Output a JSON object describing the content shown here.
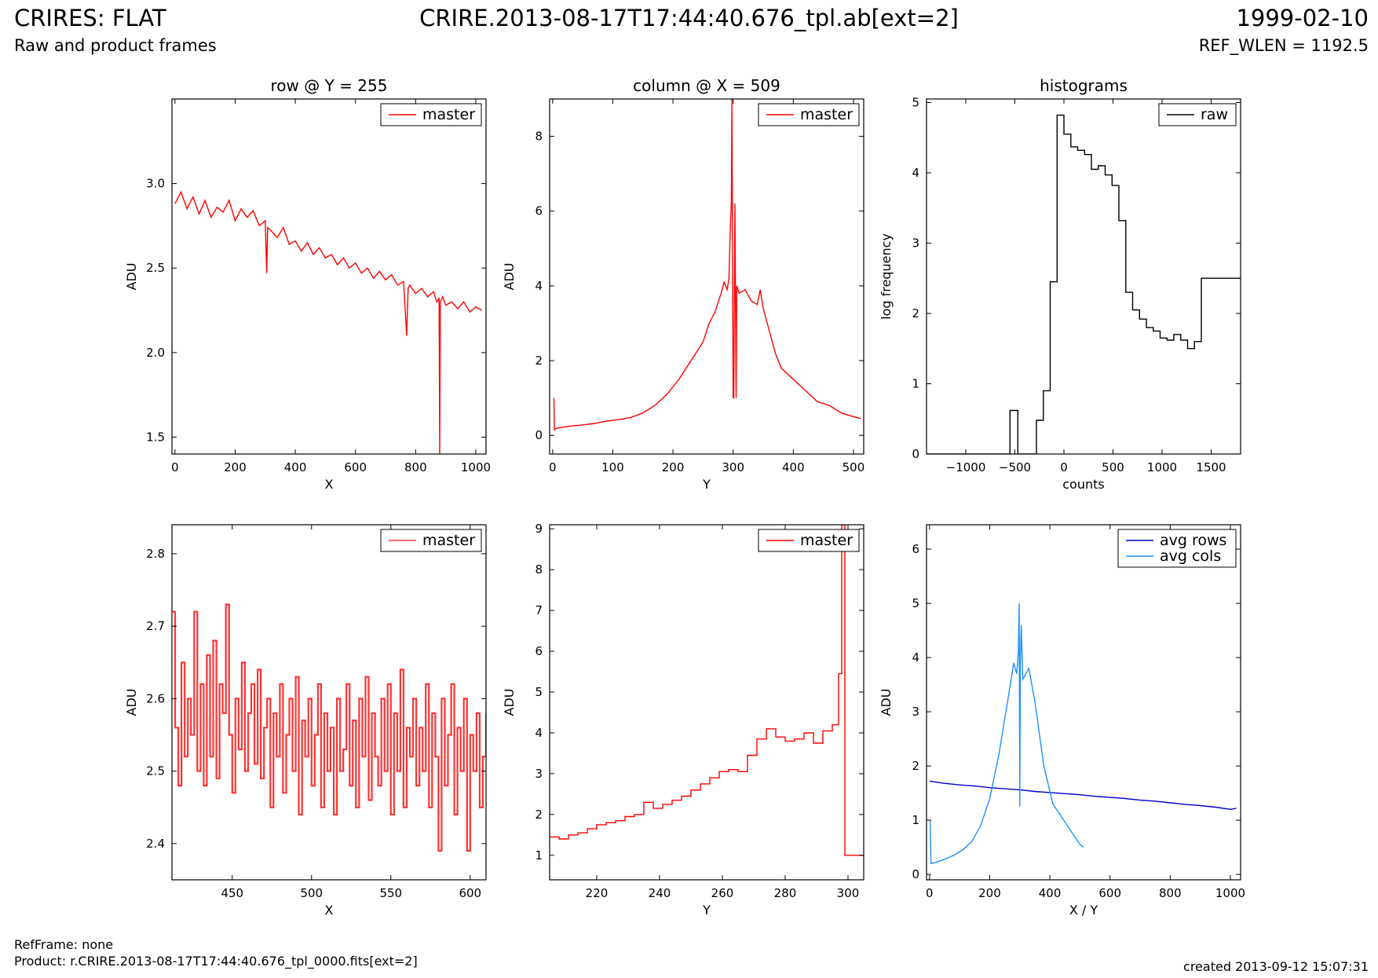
{
  "header": {
    "title_left": "CRIRES: FLAT",
    "subtitle_left": "Raw and product frames",
    "title_center": "CRIRE.2013-08-17T17:44:40.676_tpl.ab[ext=2]",
    "title_right": "1999-02-10",
    "subtitle_right": "REF_WLEN = 1192.5"
  },
  "footer": {
    "refframe": "RefFrame: none",
    "product": "Product: r.CRIRE.2013-08-17T17:44:40.676_tpl_0000.fits[ext=2]",
    "created": "created 2013-09-12 15:07:31"
  },
  "colors": {
    "red": "#ff0000",
    "darkblue": "#0000cc",
    "lightblue": "#1e90ff",
    "black": "#000000"
  },
  "chart_data": [
    {
      "id": "row",
      "type": "line",
      "title": "row @ Y = 255",
      "xlabel": "X",
      "ylabel": "ADU",
      "xlim": [
        -10,
        1034
      ],
      "ylim": [
        1.4,
        3.5
      ],
      "xticks": [
        0,
        200,
        400,
        600,
        800,
        1000
      ],
      "yticks": [
        1.5,
        2.0,
        2.5,
        3.0
      ],
      "ytick_labels": [
        "1.5",
        "2.0",
        "2.5",
        "3.0"
      ],
      "legend": "top-right",
      "series": [
        {
          "name": "master",
          "color": "#ff0000",
          "x": [
            0,
            20,
            40,
            60,
            80,
            100,
            120,
            140,
            160,
            180,
            200,
            220,
            240,
            260,
            280,
            300,
            305,
            308,
            320,
            340,
            360,
            380,
            400,
            420,
            440,
            460,
            480,
            500,
            520,
            540,
            560,
            580,
            600,
            620,
            640,
            660,
            680,
            700,
            720,
            740,
            760,
            770,
            775,
            780,
            800,
            820,
            840,
            860,
            870,
            878,
            880,
            882,
            890,
            900,
            920,
            940,
            960,
            980,
            1000,
            1020
          ],
          "y": [
            2.88,
            2.95,
            2.85,
            2.92,
            2.82,
            2.9,
            2.8,
            2.86,
            2.83,
            2.9,
            2.78,
            2.85,
            2.8,
            2.84,
            2.75,
            2.78,
            2.47,
            2.74,
            2.72,
            2.68,
            2.74,
            2.64,
            2.66,
            2.6,
            2.65,
            2.58,
            2.62,
            2.56,
            2.58,
            2.52,
            2.56,
            2.5,
            2.53,
            2.47,
            2.5,
            2.44,
            2.48,
            2.43,
            2.46,
            2.4,
            2.42,
            2.1,
            2.38,
            2.4,
            2.35,
            2.38,
            2.33,
            2.36,
            2.3,
            2.32,
            1.4,
            2.3,
            2.33,
            2.28,
            2.3,
            2.26,
            2.3,
            2.24,
            2.27,
            2.25
          ]
        }
      ]
    },
    {
      "id": "column",
      "type": "line",
      "title": "column @ X = 509",
      "xlabel": "Y",
      "ylabel": "ADU",
      "xlim": [
        -5,
        517
      ],
      "ylim": [
        -0.5,
        9
      ],
      "xticks": [
        0,
        100,
        200,
        300,
        400,
        500
      ],
      "yticks": [
        0,
        2,
        4,
        6,
        8
      ],
      "ytick_labels": [
        "0",
        "2",
        "4",
        "6",
        "8"
      ],
      "legend": "top-right",
      "series": [
        {
          "name": "master",
          "color": "#ff0000",
          "x": [
            2,
            3,
            5,
            10,
            30,
            50,
            70,
            90,
            110,
            130,
            150,
            170,
            190,
            210,
            230,
            250,
            260,
            270,
            280,
            285,
            290,
            293,
            295,
            297,
            298,
            300,
            301,
            303,
            305,
            306,
            310,
            320,
            330,
            340,
            345,
            350,
            360,
            370,
            380,
            400,
            420,
            440,
            460,
            480,
            500,
            512
          ],
          "y": [
            1.0,
            0.15,
            0.18,
            0.2,
            0.25,
            0.28,
            0.32,
            0.38,
            0.42,
            0.48,
            0.6,
            0.8,
            1.1,
            1.5,
            2.0,
            2.5,
            3.0,
            3.3,
            3.8,
            4.1,
            3.9,
            4.2,
            5.4,
            6.2,
            9.0,
            1.0,
            1.0,
            6.2,
            1.0,
            4.0,
            3.8,
            3.9,
            3.6,
            3.5,
            3.9,
            3.4,
            2.8,
            2.2,
            1.8,
            1.5,
            1.2,
            0.9,
            0.8,
            0.6,
            0.5,
            0.45
          ]
        }
      ]
    },
    {
      "id": "histograms",
      "type": "line",
      "title": "histograms",
      "xlabel": "counts",
      "ylabel": "log frequency",
      "xlim": [
        -1400,
        1800
      ],
      "ylim": [
        0,
        5.05
      ],
      "xticks": [
        -1000,
        -500,
        0,
        500,
        1000,
        1500
      ],
      "yticks": [
        0,
        1,
        2,
        3,
        4,
        5
      ],
      "ytick_labels": [
        "0",
        "1",
        "2",
        "3",
        "4",
        "5"
      ],
      "legend": "top-right",
      "series": [
        {
          "name": "raw",
          "color": "#000000",
          "step": true,
          "x": [
            -1400,
            -550,
            -550,
            -470,
            -470,
            -280,
            -280,
            -210,
            -210,
            -140,
            -140,
            -70,
            -70,
            0,
            0,
            70,
            70,
            140,
            140,
            210,
            210,
            280,
            280,
            350,
            350,
            420,
            420,
            490,
            490,
            560,
            560,
            630,
            630,
            700,
            700,
            770,
            770,
            840,
            840,
            910,
            910,
            980,
            980,
            1050,
            1050,
            1120,
            1120,
            1190,
            1190,
            1260,
            1260,
            1330,
            1330,
            1400,
            1400,
            1470,
            1470,
            1540,
            1540,
            1610,
            1610,
            1680,
            1680,
            1730,
            1730,
            1800
          ],
          "y": [
            0,
            0,
            0.62,
            0.62,
            0,
            0,
            0.48,
            0.48,
            0.9,
            0.9,
            2.45,
            2.45,
            4.82,
            4.82,
            4.55,
            4.55,
            4.37,
            4.37,
            4.32,
            4.32,
            4.26,
            4.26,
            4.05,
            4.05,
            4.1,
            4.1,
            3.97,
            3.97,
            3.82,
            3.82,
            3.32,
            3.32,
            2.3,
            2.3,
            2.05,
            2.05,
            1.92,
            1.92,
            1.8,
            1.8,
            1.75,
            1.75,
            1.65,
            1.65,
            1.62,
            1.62,
            1.7,
            1.7,
            1.62,
            1.62,
            1.5,
            1.5,
            1.6,
            1.6,
            2.5,
            2.5,
            2.5,
            2.5,
            2.5,
            2.5,
            2.5,
            2.5,
            2.5,
            2.5,
            2.5,
            2.5
          ]
        }
      ]
    },
    {
      "id": "row_zoom",
      "type": "line",
      "xlabel": "X",
      "ylabel": "ADU",
      "xlim": [
        412,
        610
      ],
      "ylim": [
        2.35,
        2.84
      ],
      "xticks": [
        450,
        500,
        550,
        600
      ],
      "yticks": [
        2.4,
        2.5,
        2.6,
        2.7,
        2.8
      ],
      "ytick_labels": [
        "2.4",
        "2.5",
        "2.6",
        "2.7",
        "2.8"
      ],
      "legend": "top-right",
      "series": [
        {
          "name": "master",
          "color": "#ff3333",
          "step": true,
          "x": [
            412,
            414,
            416,
            418,
            420,
            422,
            424,
            426,
            428,
            430,
            432,
            434,
            436,
            438,
            440,
            442,
            444,
            446,
            448,
            450,
            452,
            454,
            456,
            458,
            460,
            462,
            464,
            466,
            468,
            470,
            472,
            474,
            476,
            478,
            480,
            482,
            484,
            486,
            488,
            490,
            492,
            494,
            496,
            498,
            500,
            502,
            504,
            506,
            508,
            510,
            512,
            514,
            516,
            518,
            520,
            522,
            524,
            526,
            528,
            530,
            532,
            534,
            536,
            538,
            540,
            542,
            544,
            546,
            548,
            550,
            552,
            554,
            556,
            558,
            560,
            562,
            564,
            566,
            568,
            570,
            572,
            574,
            576,
            578,
            580,
            582,
            584,
            586,
            588,
            590,
            592,
            594,
            596,
            598,
            600,
            602,
            604,
            606,
            608,
            610
          ],
          "y": [
            2.72,
            2.56,
            2.48,
            2.65,
            2.52,
            2.6,
            2.55,
            2.72,
            2.5,
            2.62,
            2.48,
            2.66,
            2.52,
            2.68,
            2.49,
            2.62,
            2.58,
            2.73,
            2.55,
            2.47,
            2.6,
            2.53,
            2.65,
            2.5,
            2.58,
            2.62,
            2.51,
            2.64,
            2.49,
            2.56,
            2.6,
            2.45,
            2.58,
            2.52,
            2.62,
            2.47,
            2.55,
            2.6,
            2.5,
            2.63,
            2.44,
            2.57,
            2.52,
            2.6,
            2.48,
            2.55,
            2.62,
            2.45,
            2.58,
            2.5,
            2.56,
            2.44,
            2.6,
            2.5,
            2.53,
            2.62,
            2.48,
            2.57,
            2.45,
            2.6,
            2.52,
            2.63,
            2.46,
            2.58,
            2.52,
            2.48,
            2.6,
            2.5,
            2.62,
            2.44,
            2.58,
            2.5,
            2.64,
            2.45,
            2.56,
            2.52,
            2.6,
            2.48,
            2.56,
            2.5,
            2.62,
            2.45,
            2.58,
            2.52,
            2.39,
            2.6,
            2.48,
            2.55,
            2.62,
            2.44,
            2.56,
            2.5,
            2.6,
            2.39,
            2.55,
            2.5,
            2.58,
            2.45,
            2.52,
            2.58
          ]
        }
      ]
    },
    {
      "id": "column_zoom",
      "type": "line",
      "xlabel": "Y",
      "ylabel": "ADU",
      "xlim": [
        205,
        305
      ],
      "ylim": [
        0.4,
        9.1
      ],
      "xticks": [
        220,
        240,
        260,
        280,
        300
      ],
      "yticks": [
        1,
        2,
        3,
        4,
        5,
        6,
        7,
        8,
        9
      ],
      "ytick_labels": [
        "1",
        "2",
        "3",
        "4",
        "5",
        "6",
        "7",
        "8",
        "9"
      ],
      "legend": "top-right",
      "series": [
        {
          "name": "master",
          "color": "#ff0000",
          "step": true,
          "x": [
            205,
            208,
            211,
            214,
            217,
            220,
            223,
            226,
            229,
            232,
            235,
            238,
            241,
            244,
            247,
            250,
            253,
            256,
            259,
            262,
            265,
            268,
            271,
            274,
            277,
            280,
            283,
            286,
            289,
            292,
            295,
            297,
            298,
            299,
            300,
            301,
            305
          ],
          "y": [
            1.45,
            1.4,
            1.5,
            1.55,
            1.65,
            1.75,
            1.8,
            1.85,
            1.95,
            2.0,
            2.3,
            2.15,
            2.25,
            2.35,
            2.45,
            2.6,
            2.75,
            2.9,
            3.05,
            3.1,
            3.05,
            3.45,
            3.85,
            4.1,
            3.9,
            3.8,
            3.85,
            4.0,
            3.75,
            4.05,
            4.2,
            5.45,
            9.1,
            1.0,
            1.0,
            1.0,
            1.0
          ]
        }
      ]
    },
    {
      "id": "averages",
      "type": "line",
      "xlabel": "X / Y",
      "ylabel": "ADU",
      "xlim": [
        -10,
        1034
      ],
      "ylim": [
        -0.1,
        6.45
      ],
      "xticks": [
        0,
        200,
        400,
        600,
        800,
        1000
      ],
      "yticks": [
        0,
        1,
        2,
        3,
        4,
        5,
        6
      ],
      "ytick_labels": [
        "0",
        "1",
        "2",
        "3",
        "4",
        "5",
        "6"
      ],
      "legend": "top-right",
      "series": [
        {
          "name": "avg rows",
          "color": "#0000cc",
          "x": [
            0,
            50,
            100,
            150,
            200,
            250,
            300,
            350,
            400,
            450,
            500,
            550,
            600,
            650,
            700,
            750,
            800,
            850,
            900,
            950,
            1000,
            1020
          ],
          "y": [
            1.72,
            1.68,
            1.65,
            1.63,
            1.6,
            1.58,
            1.56,
            1.53,
            1.51,
            1.49,
            1.47,
            1.44,
            1.42,
            1.4,
            1.37,
            1.35,
            1.32,
            1.29,
            1.27,
            1.24,
            1.2,
            1.22
          ]
        },
        {
          "name": "avg cols",
          "color": "#1e90ff",
          "x": [
            2,
            5,
            20,
            50,
            80,
            110,
            140,
            170,
            200,
            230,
            260,
            280,
            290,
            295,
            298,
            300,
            302,
            305,
            310,
            330,
            350,
            380,
            410,
            440,
            470,
            500,
            512
          ],
          "y": [
            1.0,
            0.2,
            0.22,
            0.28,
            0.35,
            0.45,
            0.6,
            0.9,
            1.4,
            2.2,
            3.2,
            3.9,
            3.7,
            4.1,
            5.0,
            1.25,
            3.9,
            4.6,
            3.6,
            3.8,
            3.2,
            2.0,
            1.3,
            1.05,
            0.8,
            0.55,
            0.5
          ]
        }
      ]
    }
  ]
}
